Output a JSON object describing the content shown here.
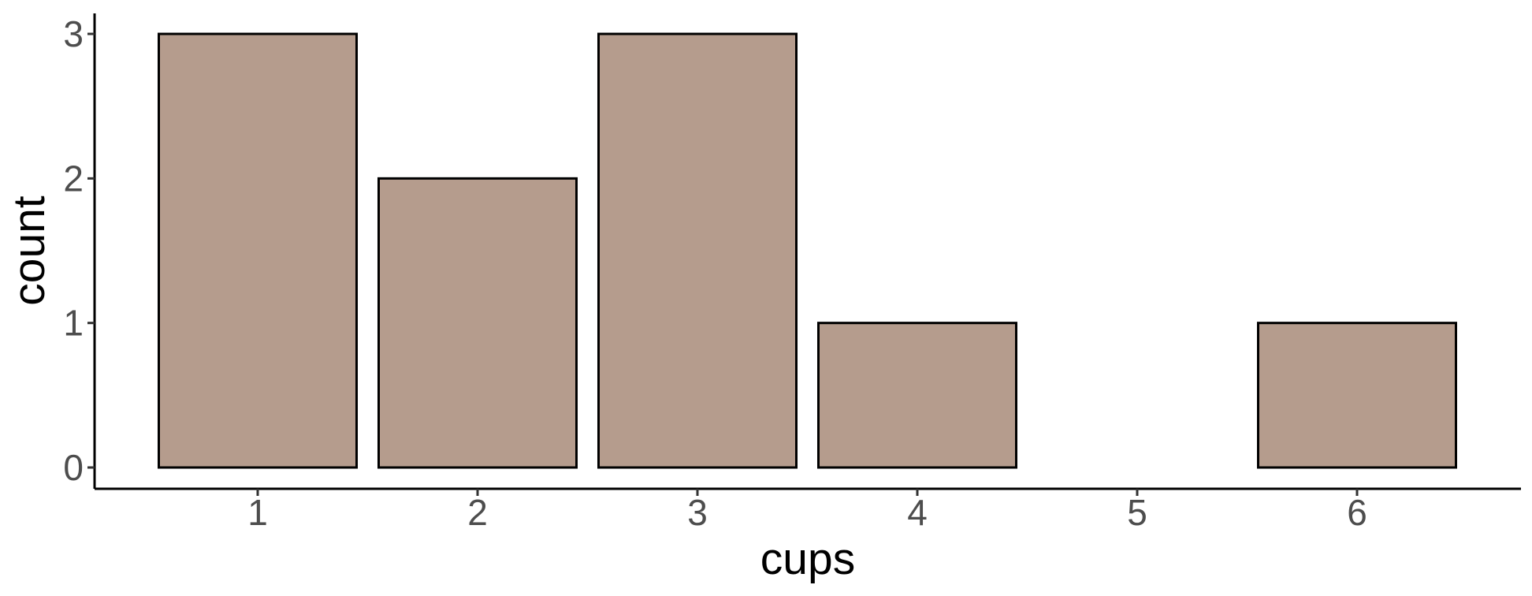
{
  "chart_data": {
    "type": "bar",
    "categories": [
      "1",
      "2",
      "3",
      "4",
      "5",
      "6"
    ],
    "values": [
      3,
      2,
      3,
      1,
      0,
      1
    ],
    "title": "",
    "xlabel": "cups",
    "ylabel": "count",
    "ylim": [
      0,
      3
    ],
    "yticks": [
      "0",
      "1",
      "2",
      "3"
    ],
    "grid": false,
    "bar_fill": "#b59c8d",
    "bar_outline": "#000000"
  }
}
